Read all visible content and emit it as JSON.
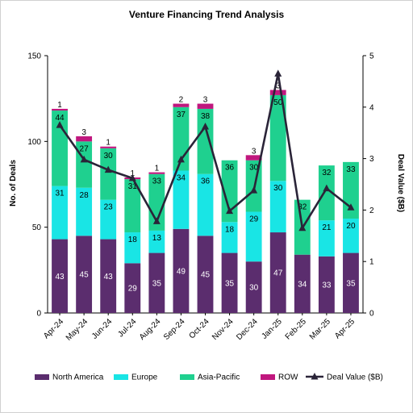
{
  "chart_data": {
    "type": "bar",
    "title": "Venture Financing Trend Analysis",
    "ylabel": "No. of Deals",
    "y2label": "Deal Value ($B)",
    "ylim": [
      0,
      150
    ],
    "y2lim": [
      0,
      5
    ],
    "yticks": [
      0,
      50,
      100,
      150
    ],
    "y2ticks": [
      0,
      1,
      2,
      3,
      4,
      5
    ],
    "grid": false,
    "legend_position": "bottom",
    "categories": [
      "Apr-24",
      "May-24",
      "Jun-24",
      "Jul-24",
      "Aug-24",
      "Sep-24",
      "Oct-24",
      "Nov-24",
      "Dec-24",
      "Jan-25",
      "Feb-25",
      "Mar-25",
      "Apr-25"
    ],
    "series": [
      {
        "name": "North America",
        "color": "#5b2d6e",
        "values": [
          43,
          45,
          43,
          29,
          35,
          49,
          45,
          35,
          30,
          47,
          34,
          33,
          35
        ]
      },
      {
        "name": "Europe",
        "color": "#19e5e5",
        "values": [
          31,
          28,
          23,
          18,
          13,
          34,
          36,
          18,
          29,
          30,
          null,
          21,
          20
        ]
      },
      {
        "name": "Asia-Pacific",
        "color": "#1fd08f",
        "values": [
          44,
          27,
          30,
          31,
          33,
          37,
          38,
          36,
          30,
          50,
          32,
          32,
          33
        ]
      },
      {
        "name": "ROW",
        "color": "#c0177e",
        "values": [
          1,
          3,
          1,
          1,
          1,
          2,
          3,
          null,
          3,
          3,
          null,
          null,
          null
        ]
      }
    ],
    "line_series": {
      "name": "Deal Value ($B)",
      "color": "#2a2438",
      "values": [
        3.65,
        2.98,
        2.78,
        2.62,
        1.78,
        2.98,
        3.62,
        1.98,
        2.38,
        4.65,
        1.65,
        2.42,
        2.05
      ]
    }
  }
}
